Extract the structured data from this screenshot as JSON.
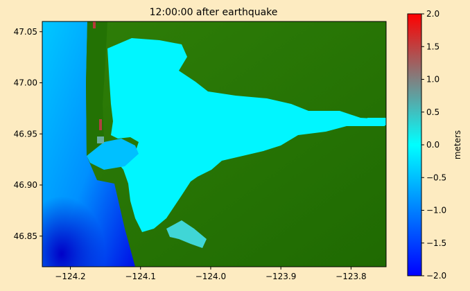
{
  "chart_data": {
    "type": "heatmap",
    "title": "12:00:00 after earthquake",
    "xlabel": "",
    "ylabel": "",
    "x_range": [
      -124.24,
      -123.75
    ],
    "y_range": [
      46.82,
      47.06
    ],
    "x_ticks": [
      -124.2,
      -124.1,
      -124.0,
      -123.9,
      -123.8
    ],
    "x_tick_labels": [
      "−124.2",
      "−124.1",
      "−124.0",
      "−123.9",
      "−123.8"
    ],
    "y_ticks": [
      46.85,
      46.9,
      46.95,
      47.0,
      47.05
    ],
    "y_tick_labels": [
      "46.85",
      "46.90",
      "46.95",
      "47.00",
      "47.05"
    ],
    "colorbar": {
      "label": "meters",
      "range": [
        -2.0,
        2.0
      ],
      "ticks": [
        -2.0,
        -1.5,
        -1.0,
        -0.5,
        0.0,
        0.5,
        1.0,
        1.5,
        2.0
      ],
      "tick_labels": [
        "−2.0",
        "−1.5",
        "−1.0",
        "−0.5",
        "0.0",
        "0.5",
        "1.0",
        "1.5",
        "2.0"
      ],
      "colors": [
        "#0000ff",
        "#00ffff",
        "#ff0000"
      ]
    },
    "land_colors": [
      "#2b7a05",
      "#1a5f00"
    ],
    "grid": false
  }
}
